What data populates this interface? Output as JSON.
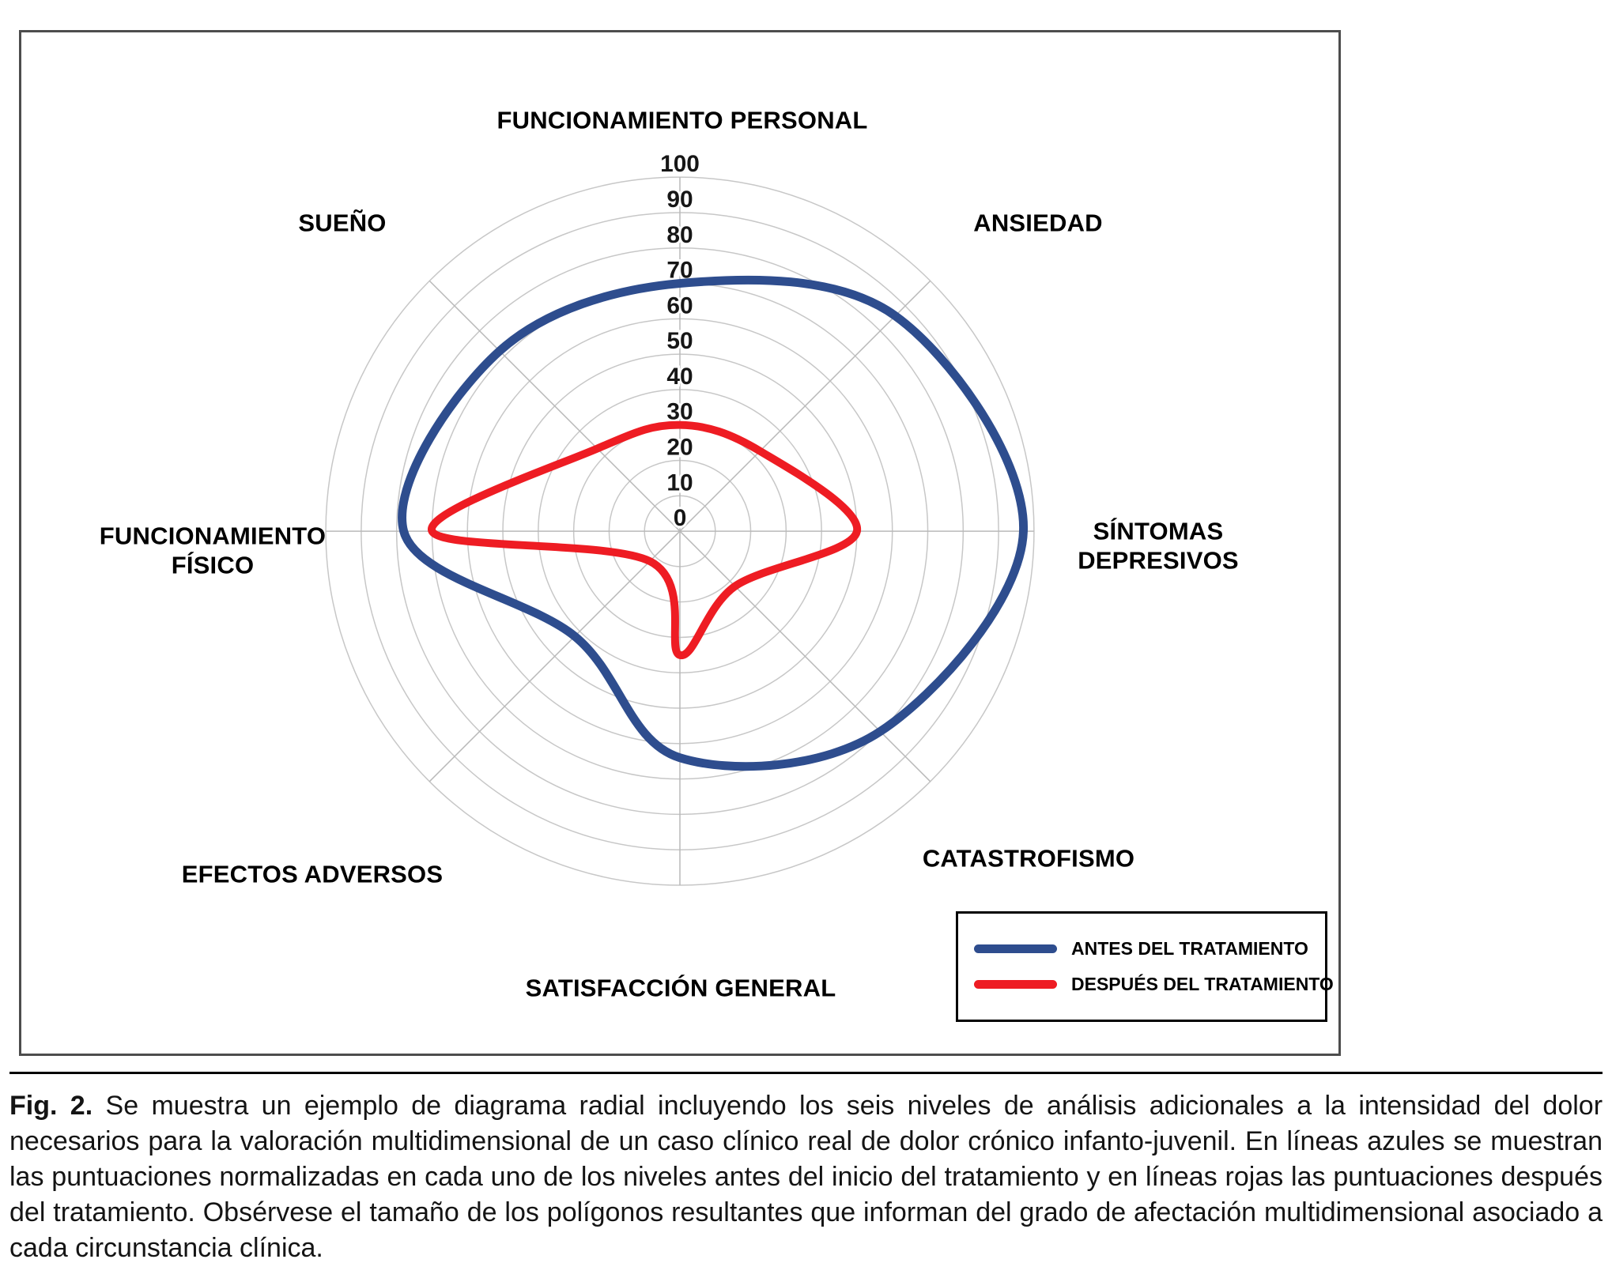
{
  "figure": {
    "caption_label": "Fig. 2.",
    "caption_text": "Se muestra un ejemplo de diagrama radial incluyendo los seis niveles de análisis adicionales a la intensidad del dolor necesarios para la valoración multidimensional de un caso clínico real de dolor crónico infanto-juvenil. En líneas azules se muestran las puntuaciones normalizadas en cada uno de los niveles antes del inicio del tratamiento y en líneas rojas las puntuaciones después del tratamiento. Obsérvese el tamaño de los polígonos resultantes que informan del grado de afectación multidimensional asociado a cada circunstancia clínica."
  },
  "legend": {
    "items": [
      {
        "label": "ANTES DEL TRATAMIENTO",
        "color": "#2e4d8e"
      },
      {
        "label": "DESPUÉS DEL TRATAMIENTO",
        "color": "#ee1c23"
      }
    ]
  },
  "chart_data": {
    "type": "radar",
    "categories": [
      "FUNCIONAMIENTO PERSONAL",
      "ANSIEDAD",
      "SÍNTOMAS DEPRESIVOS",
      "CATASTROFISMO",
      "SATISFACCIÓN GENERAL",
      "EFECTOS ADVERSOS",
      "FUNCIONAMIENTO FÍSICO",
      "SUEÑO"
    ],
    "series": [
      {
        "name": "ANTES DEL TRATAMIENTO",
        "color": "#2e4d8e",
        "stroke_width": 11,
        "values": [
          70,
          86,
          97,
          80,
          64,
          42,
          78,
          72
        ]
      },
      {
        "name": "DESPUÉS DEL TRATAMIENTO",
        "color": "#ee1c23",
        "stroke_width": 10,
        "values": [
          30,
          32,
          50,
          22,
          35,
          12,
          70,
          33
        ]
      }
    ],
    "radial_axis": {
      "min": 0,
      "max": 100,
      "step": 10,
      "tick_labels": [
        "100",
        "90",
        "80",
        "70",
        "60",
        "50",
        "40",
        "30",
        "20",
        "10",
        "0"
      ]
    },
    "grid": true,
    "grid_color": "#c7c7c7",
    "legend_position": "bottom-right"
  }
}
